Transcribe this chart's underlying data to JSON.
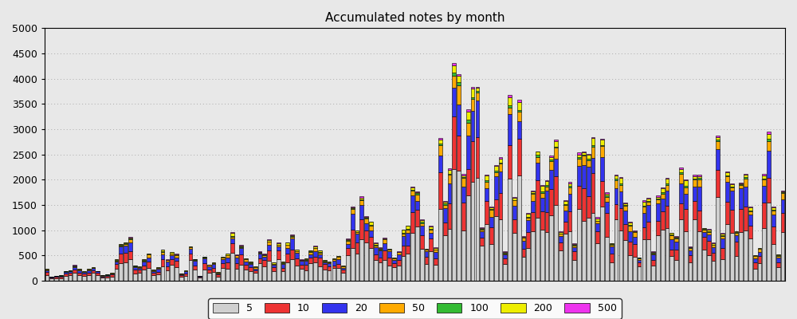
{
  "title": "Accumulated notes by month",
  "categories": [
    "5",
    "10",
    "20",
    "50",
    "100",
    "200",
    "500"
  ],
  "colors": [
    "#d0d0d0",
    "#ee3333",
    "#3333ee",
    "#ffaa00",
    "#33bb33",
    "#eeee00",
    "#ee33ee"
  ],
  "ylim": [
    0,
    5000
  ],
  "yticks": [
    0,
    500,
    1000,
    1500,
    2000,
    2500,
    3000,
    3500,
    4000,
    4500,
    5000
  ],
  "bg_color": "#e8e8e8",
  "grid_color": "#aaaaaa",
  "bar_edge_color": "#000000",
  "bar_linewidth": 0.4,
  "n_months": 160,
  "seed": 12345
}
